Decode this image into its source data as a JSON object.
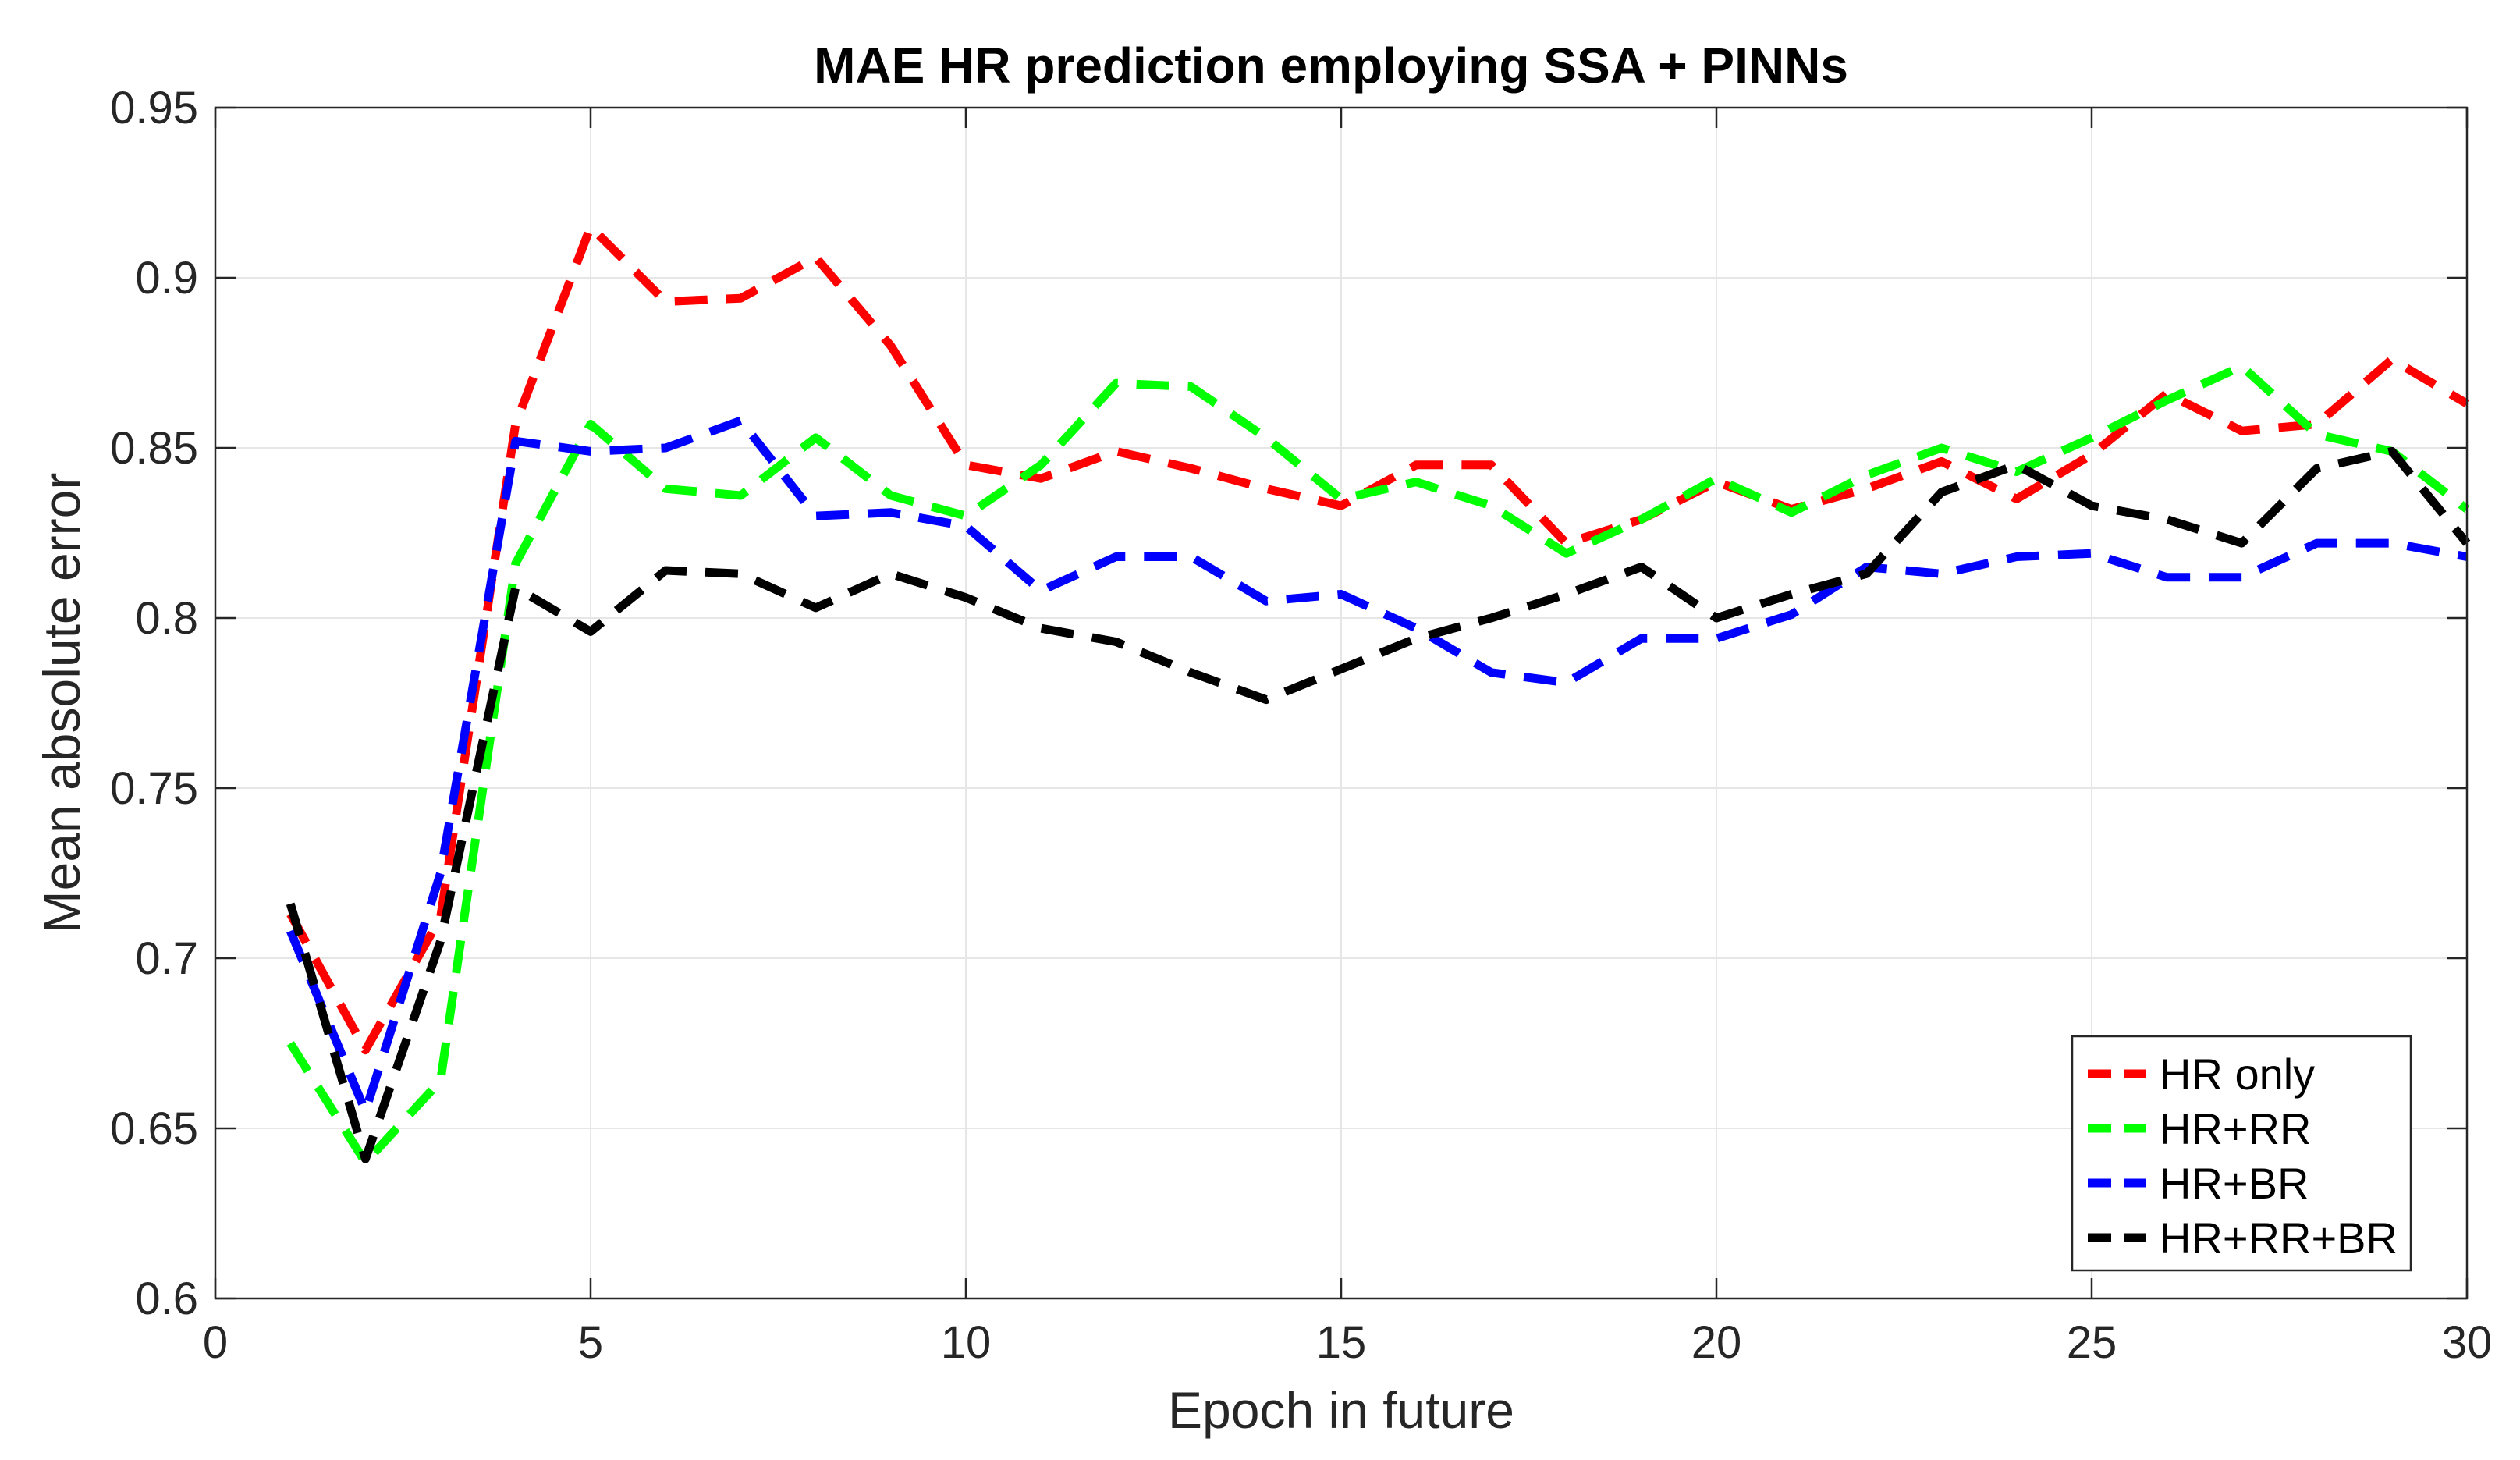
{
  "chart_data": {
    "type": "line",
    "title": "MAE HR prediction employing SSA + PINNs",
    "xlabel": "Epoch in future",
    "ylabel": "Mean absolute error",
    "xlim": [
      0,
      30
    ],
    "ylim": [
      0.6,
      0.95
    ],
    "xticks": [
      0,
      5,
      10,
      15,
      20,
      25,
      30
    ],
    "xtick_labels": [
      "0",
      "5",
      "10",
      "15",
      "20",
      "25",
      "30"
    ],
    "yticks": [
      0.6,
      0.65,
      0.7,
      0.75,
      0.8,
      0.85,
      0.9,
      0.95
    ],
    "ytick_labels": [
      "0.6",
      "0.65",
      "0.7",
      "0.75",
      "0.8",
      "0.85",
      "0.9",
      "0.95"
    ],
    "grid": true,
    "legend_position": "bottom-right",
    "line_style": "dashed",
    "x": [
      1,
      2,
      3,
      4,
      5,
      6,
      7,
      8,
      9,
      10,
      11,
      12,
      13,
      14,
      15,
      16,
      17,
      18,
      19,
      20,
      21,
      22,
      23,
      24,
      25,
      26,
      27,
      28,
      29,
      30
    ],
    "series": [
      {
        "name": "HR only",
        "color": "#ff0000",
        "values": [
          0.713,
          0.673,
          0.712,
          0.857,
          0.915,
          0.893,
          0.894,
          0.906,
          0.88,
          0.845,
          0.841,
          0.849,
          0.844,
          0.838,
          0.833,
          0.845,
          0.845,
          0.822,
          0.829,
          0.84,
          0.832,
          0.838,
          0.846,
          0.835,
          0.848,
          0.866,
          0.855,
          0.857,
          0.876,
          0.863
        ]
      },
      {
        "name": "HR+RR",
        "color": "#00ff00",
        "values": [
          0.675,
          0.64,
          0.664,
          0.816,
          0.857,
          0.838,
          0.836,
          0.853,
          0.836,
          0.83,
          0.845,
          0.869,
          0.868,
          0.853,
          0.835,
          0.84,
          0.833,
          0.819,
          0.829,
          0.841,
          0.831,
          0.842,
          0.85,
          0.843,
          0.853,
          0.864,
          0.874,
          0.854,
          0.849,
          0.832
        ]
      },
      {
        "name": "HR+BR",
        "color": "#0000ff",
        "values": [
          0.708,
          0.655,
          0.725,
          0.852,
          0.849,
          0.85,
          0.858,
          0.83,
          0.831,
          0.827,
          0.808,
          0.818,
          0.818,
          0.805,
          0.807,
          0.797,
          0.784,
          0.781,
          0.794,
          0.794,
          0.801,
          0.815,
          0.813,
          0.818,
          0.819,
          0.812,
          0.812,
          0.822,
          0.822,
          0.818
        ]
      },
      {
        "name": "HR+RR+BR",
        "color": "#000000",
        "values": [
          0.716,
          0.641,
          0.705,
          0.809,
          0.796,
          0.814,
          0.813,
          0.803,
          0.813,
          0.806,
          0.797,
          0.793,
          0.784,
          0.776,
          0.785,
          0.794,
          0.8,
          0.807,
          0.815,
          0.8,
          0.807,
          0.813,
          0.837,
          0.845,
          0.833,
          0.829,
          0.822,
          0.844,
          0.849,
          0.822
        ]
      }
    ]
  }
}
